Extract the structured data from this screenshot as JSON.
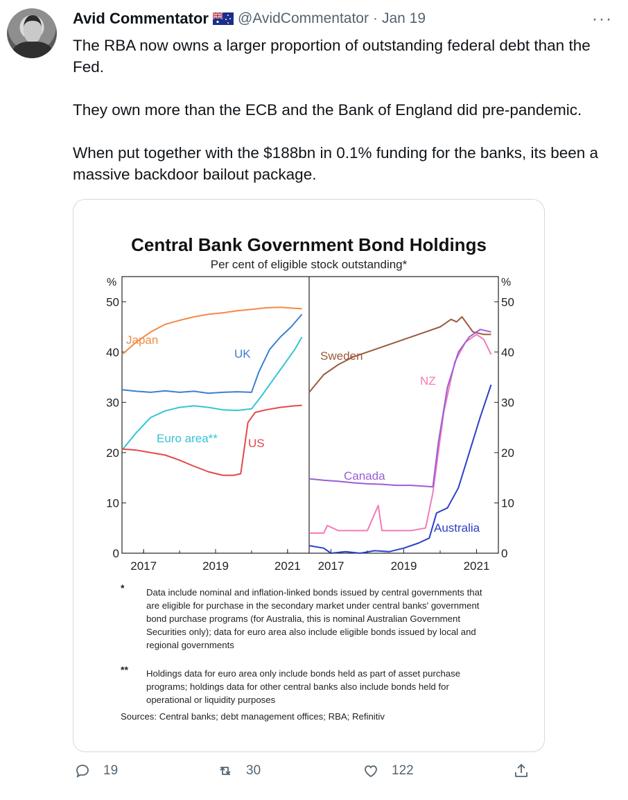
{
  "tweet": {
    "author_name": "Avid Commentator",
    "flag_icon": "australian-flag-icon",
    "handle": "@AvidCommentator",
    "separator": "·",
    "date": "Jan 19",
    "more": "···",
    "paragraphs": [
      "The RBA now owns a larger proportion of outstanding federal debt than the Fed.",
      "They own more than the ECB and the Bank of England did pre-pandemic.",
      "When put together with the $188bn in 0.1% funding for the banks, its been a massive backdoor bailout package."
    ]
  },
  "chart_card": {
    "title": "Central Bank Government Bond Holdings",
    "subtitle": "Per cent of eligible stock outstanding*",
    "footnotes": [
      {
        "mark": "*",
        "text": "Data include nominal and inflation-linked bonds issued by central governments that are eligible for purchase in the secondary market under central banks' government bond purchase programs (for Australia, this is nominal Australian Government Securities only); data for euro area also include eligible bonds issued by local and regional governments"
      },
      {
        "mark": "**",
        "text": "Holdings data for euro area only include bonds held as part of asset purchase programs; holdings data for other central banks also include bonds held for operational or liquidity purposes"
      }
    ],
    "sources": "Sources: Central banks; debt management offices; RBA; Refinitiv"
  },
  "chart_data": [
    {
      "type": "line",
      "ylabel": "%",
      "ylim": [
        0,
        55
      ],
      "xlim": [
        2016.4,
        2021.6
      ],
      "xticks": [
        "2017",
        "2019",
        "2021"
      ],
      "yticks": [
        "0",
        "10",
        "20",
        "30",
        "40",
        "50"
      ],
      "series": [
        {
          "name": "Japan",
          "color": "#f28a45",
          "x": [
            2016.4,
            2016.8,
            2017.2,
            2017.6,
            2018.0,
            2018.4,
            2018.8,
            2019.2,
            2019.6,
            2020.0,
            2020.4,
            2020.8,
            2021.2,
            2021.4
          ],
          "y": [
            39.5,
            42,
            44,
            45.5,
            46.3,
            47,
            47.5,
            47.8,
            48.2,
            48.5,
            48.8,
            48.9,
            48.7,
            48.6
          ]
        },
        {
          "name": "UK",
          "color": "#3a7fd0",
          "x": [
            2016.4,
            2016.8,
            2017.2,
            2017.6,
            2018.0,
            2018.4,
            2018.8,
            2019.2,
            2019.6,
            2020.0,
            2020.2,
            2020.5,
            2020.8,
            2021.1,
            2021.4
          ],
          "y": [
            32.5,
            32.2,
            32,
            32.3,
            32,
            32.2,
            31.8,
            32,
            32.1,
            32,
            36,
            40.5,
            43,
            45,
            47.5
          ]
        },
        {
          "name": "Euro area**",
          "color": "#32c5d2",
          "x": [
            2016.4,
            2016.8,
            2017.2,
            2017.6,
            2018.0,
            2018.4,
            2018.8,
            2019.2,
            2019.6,
            2020.0,
            2020.3,
            2020.6,
            2020.9,
            2021.2,
            2021.4
          ],
          "y": [
            20.5,
            24,
            27,
            28.3,
            29,
            29.3,
            29,
            28.5,
            28.4,
            28.7,
            31.5,
            34.5,
            37.5,
            40.5,
            43
          ]
        },
        {
          "name": "US",
          "color": "#e2484a",
          "x": [
            2016.4,
            2016.8,
            2017.2,
            2017.6,
            2018.0,
            2018.4,
            2018.8,
            2019.2,
            2019.5,
            2019.7,
            2019.9,
            2020.1,
            2020.4,
            2020.8,
            2021.2,
            2021.4
          ],
          "y": [
            20.7,
            20.5,
            20,
            19.5,
            18.5,
            17.3,
            16.2,
            15.5,
            15.5,
            15.8,
            26,
            28,
            28.5,
            29,
            29.3,
            29.4
          ]
        }
      ]
    },
    {
      "type": "line",
      "ylabel": "%",
      "ylim": [
        0,
        55
      ],
      "xlim": [
        2016.4,
        2021.6
      ],
      "xticks": [
        "2017",
        "2019",
        "2021"
      ],
      "yticks": [
        "0",
        "10",
        "20",
        "30",
        "40",
        "50"
      ],
      "series": [
        {
          "name": "Sweden",
          "color": "#9a5a3c",
          "x": [
            2016.4,
            2016.8,
            2017.2,
            2017.6,
            2018.0,
            2018.4,
            2018.8,
            2019.2,
            2019.6,
            2020.0,
            2020.3,
            2020.45,
            2020.6,
            2020.9,
            2021.2,
            2021.4
          ],
          "y": [
            32,
            35.5,
            37.5,
            39,
            40,
            41,
            42,
            43,
            44,
            45,
            46.5,
            46,
            47,
            44,
            43.5,
            43.5
          ]
        },
        {
          "name": "NZ",
          "color": "#f27ab8",
          "x": [
            2016.4,
            2016.8,
            2016.9,
            2017.2,
            2017.6,
            2018.0,
            2018.3,
            2018.4,
            2018.8,
            2019.2,
            2019.6,
            2019.8,
            2020.1,
            2020.4,
            2020.7,
            2021.0,
            2021.2,
            2021.4
          ],
          "y": [
            4,
            4,
            5.5,
            4.5,
            4.5,
            4.5,
            9.5,
            4.5,
            4.5,
            4.5,
            5,
            12,
            28,
            38,
            42,
            43.5,
            42.5,
            39.5
          ]
        },
        {
          "name": "Canada",
          "color": "#9a5dd6",
          "x": [
            2016.4,
            2016.8,
            2017.2,
            2017.6,
            2018.0,
            2018.4,
            2018.8,
            2019.2,
            2019.6,
            2019.8,
            2019.95,
            2020.2,
            2020.5,
            2020.8,
            2021.1,
            2021.4
          ],
          "y": [
            14.8,
            14.5,
            14.3,
            14,
            13.8,
            13.7,
            13.5,
            13.5,
            13.3,
            13.2,
            22,
            33,
            40,
            43,
            44.5,
            44
          ]
        },
        {
          "name": "Australia",
          "color": "#2b3fc6",
          "x": [
            2016.4,
            2016.8,
            2017.0,
            2017.4,
            2017.8,
            2018.2,
            2018.6,
            2019.0,
            2019.4,
            2019.7,
            2019.9,
            2020.2,
            2020.5,
            2020.8,
            2021.1,
            2021.4
          ],
          "y": [
            1.5,
            1,
            0,
            0.3,
            0,
            0.5,
            0.3,
            1,
            2,
            3,
            8,
            9,
            13,
            20,
            27,
            33.5
          ]
        }
      ]
    }
  ],
  "actions": [
    {
      "icon": "reply-icon",
      "count": "19"
    },
    {
      "icon": "retweet-icon",
      "count": "30"
    },
    {
      "icon": "like-icon",
      "count": "122"
    },
    {
      "icon": "share-icon",
      "count": ""
    }
  ]
}
